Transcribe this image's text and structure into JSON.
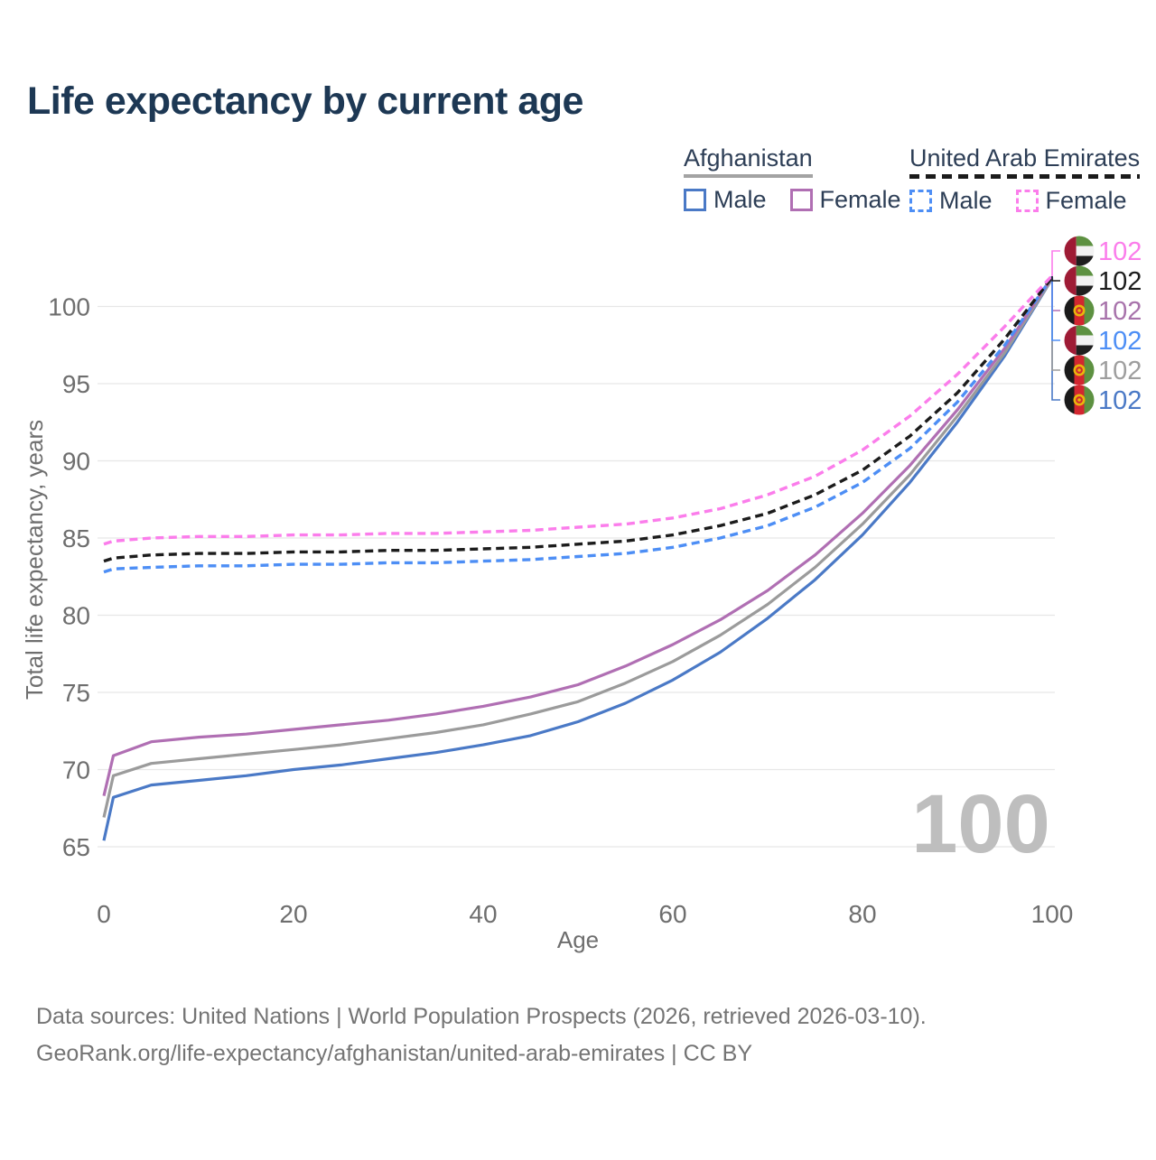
{
  "title": "Life expectancy by current age",
  "legend": {
    "groups": [
      {
        "name": "Afghanistan",
        "line_style": "solid",
        "underline_color": "#a3a3a3",
        "items": [
          {
            "label": "Male",
            "color": "#4a79c6"
          },
          {
            "label": "Female",
            "color": "#b06fb3"
          }
        ]
      },
      {
        "name": "United Arab Emirates",
        "line_style": "dashed",
        "underline_color": "#1b1b1b",
        "items": [
          {
            "label": "Male",
            "color": "#4d8ef5"
          },
          {
            "label": "Female",
            "color": "#fb7deb"
          }
        ]
      }
    ]
  },
  "age_indicator": "100",
  "flags": {
    "uae": {
      "red": "#9e1b35",
      "green": "#5d9141",
      "white": "#f2f2f2",
      "black": "#1f1f1f"
    },
    "afghanistan": {
      "black": "#1a1a1a",
      "red": "#d22730",
      "green": "#5d9141",
      "gold": "#eab60c"
    }
  },
  "chart_data": {
    "type": "line",
    "title": "Life expectancy by current age",
    "xlabel": "Age",
    "ylabel": "Total life expectancy, years",
    "x_ticks": [
      0,
      20,
      40,
      60,
      80,
      100
    ],
    "y_ticks": [
      65,
      70,
      75,
      80,
      85,
      90,
      95,
      100
    ],
    "xlim": [
      0,
      100
    ],
    "ylim": [
      63,
      104
    ],
    "grid": "horizontal",
    "legend_position": "top-right",
    "ages": [
      0,
      1,
      5,
      10,
      15,
      20,
      25,
      30,
      35,
      40,
      45,
      50,
      55,
      60,
      65,
      70,
      75,
      80,
      85,
      90,
      95,
      100
    ],
    "series": [
      {
        "id": "afghanistan-male",
        "name": "Afghanistan Male",
        "color": "#4a79c6",
        "dashed": false,
        "flag": "afghanistan",
        "end_label": "102",
        "end_label_color": "#4a79c6",
        "label_slot": 5,
        "values": [
          65.4,
          68.2,
          69.0,
          69.3,
          69.6,
          70.0,
          70.3,
          70.7,
          71.1,
          71.6,
          72.2,
          73.1,
          74.3,
          75.8,
          77.6,
          79.8,
          82.3,
          85.2,
          88.6,
          92.5,
          96.8,
          101.8
        ]
      },
      {
        "id": "afghanistan-all",
        "name": "Afghanistan",
        "color": "#9b9b9b",
        "dashed": false,
        "flag": "afghanistan",
        "end_label": "102",
        "end_label_color": "#9e9e9e",
        "label_slot": 4,
        "values": [
          66.9,
          69.6,
          70.4,
          70.7,
          71.0,
          71.3,
          71.6,
          72.0,
          72.4,
          72.9,
          73.6,
          74.4,
          75.6,
          77.0,
          78.7,
          80.7,
          83.1,
          85.9,
          89.1,
          92.9,
          97.0,
          101.8
        ]
      },
      {
        "id": "afghanistan-female",
        "name": "Afghanistan Female",
        "color": "#b06fb3",
        "dashed": false,
        "flag": "afghanistan",
        "end_label": "102",
        "end_label_color": "#a873ab",
        "label_slot": 2,
        "values": [
          68.3,
          70.9,
          71.8,
          72.1,
          72.3,
          72.6,
          72.9,
          73.2,
          73.6,
          74.1,
          74.7,
          75.5,
          76.7,
          78.1,
          79.7,
          81.6,
          83.9,
          86.6,
          89.7,
          93.3,
          97.3,
          101.9
        ]
      },
      {
        "id": "uae-male",
        "name": "United Arab Emirates Male",
        "color": "#4d8ef5",
        "dashed": true,
        "flag": "uae",
        "end_label": "102",
        "end_label_color": "#4d8ef5",
        "label_slot": 3,
        "values": [
          82.8,
          83.0,
          83.1,
          83.2,
          83.2,
          83.3,
          83.3,
          83.4,
          83.4,
          83.5,
          83.6,
          83.8,
          84.0,
          84.4,
          85.0,
          85.8,
          87.0,
          88.6,
          90.8,
          93.8,
          97.5,
          101.9
        ]
      },
      {
        "id": "uae-all",
        "name": "United Arab Emirates",
        "color": "#1c1c1c",
        "dashed": true,
        "flag": "uae",
        "end_label": "102",
        "end_label_color": "#1c1c1c",
        "label_slot": 1,
        "values": [
          83.5,
          83.7,
          83.9,
          84.0,
          84.0,
          84.1,
          84.1,
          84.2,
          84.2,
          84.3,
          84.4,
          84.6,
          84.8,
          85.2,
          85.8,
          86.6,
          87.8,
          89.4,
          91.6,
          94.4,
          97.9,
          101.9
        ]
      },
      {
        "id": "uae-female",
        "name": "United Arab Emirates Female",
        "color": "#fb7deb",
        "dashed": true,
        "flag": "uae",
        "end_label": "102",
        "end_label_color": "#fb7deb",
        "label_slot": 0,
        "values": [
          84.6,
          84.8,
          85.0,
          85.1,
          85.1,
          85.2,
          85.2,
          85.3,
          85.3,
          85.4,
          85.5,
          85.7,
          85.9,
          86.3,
          86.9,
          87.8,
          89.0,
          90.7,
          92.9,
          95.6,
          98.7,
          102.0
        ]
      }
    ]
  },
  "footer": {
    "line1": "Data sources: United Nations | World Population Prospects (2026, retrieved 2026-03-10).",
    "line2": "GeoRank.org/life-expectancy/afghanistan/united-arab-emirates | CC BY"
  }
}
